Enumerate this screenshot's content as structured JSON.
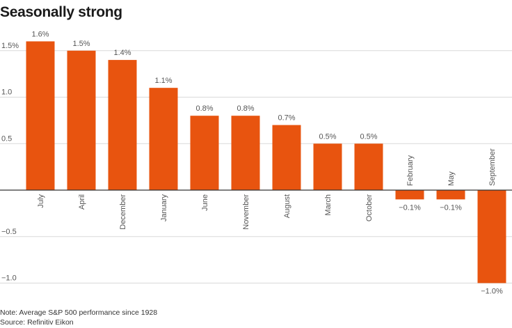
{
  "title": "Seasonally strong",
  "note": "Note: Average S&P 500 performance since 1928",
  "source": "Source: Refinitiv Eikon",
  "colors": {
    "bar": "#e8540f",
    "grid": "#d9d9d9",
    "axis": "#333333",
    "text": "#555555"
  },
  "chart_data": {
    "type": "bar",
    "categories": [
      "July",
      "April",
      "December",
      "January",
      "June",
      "November",
      "August",
      "March",
      "October",
      "February",
      "May",
      "September"
    ],
    "values": [
      1.6,
      1.5,
      1.4,
      1.1,
      0.8,
      0.8,
      0.7,
      0.5,
      0.5,
      -0.1,
      -0.1,
      -1.0
    ],
    "data_labels": [
      "1.6%",
      "1.5%",
      "1.4%",
      "1.1%",
      "0.8%",
      "0.8%",
      "0.7%",
      "0.5%",
      "0.5%",
      "−0.1%",
      "−0.1%",
      "−1.0%"
    ],
    "y_ticks": [
      1.5,
      1.0,
      0.5,
      -0.5,
      -1.0
    ],
    "y_tick_labels": [
      "1.5%",
      "1.0",
      "0.5",
      "−0.5",
      "−1.0"
    ],
    "ylim": [
      -1.0,
      1.6
    ],
    "grid": true,
    "xlabel": "",
    "ylabel": ""
  }
}
